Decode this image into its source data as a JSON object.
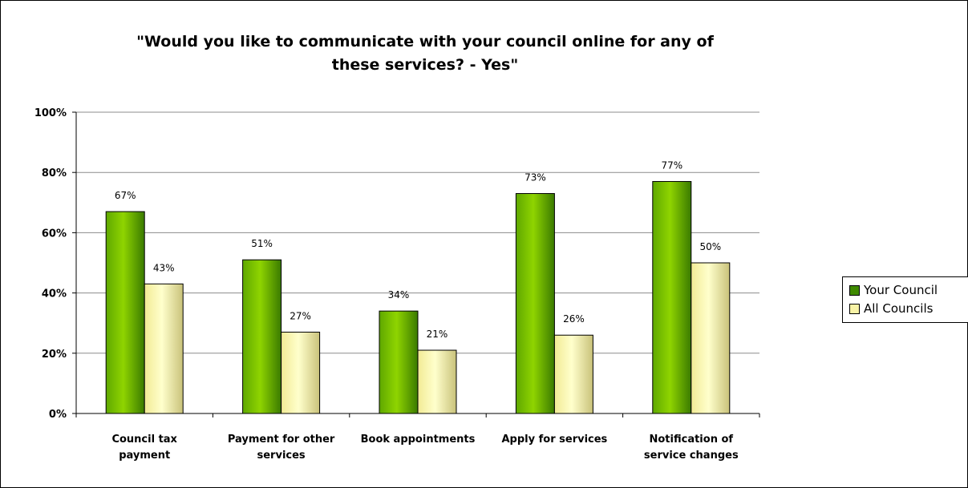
{
  "chart_data": {
    "type": "bar",
    "title": "\"Would you like to communicate with your council online for any of these services? - Yes\"",
    "categories": [
      [
        "Council tax",
        "payment"
      ],
      [
        "Payment for other",
        "services"
      ],
      [
        "Book appointments"
      ],
      [
        "Apply for services"
      ],
      [
        "Notification of",
        "service changes"
      ]
    ],
    "series": [
      {
        "name": "Your Council",
        "values": [
          67,
          51,
          34,
          73,
          77
        ],
        "labels": [
          "67%",
          "51%",
          "34%",
          "73%",
          "77%"
        ],
        "color": "#3f8a00"
      },
      {
        "name": "All Councils",
        "values": [
          43,
          27,
          21,
          26,
          50
        ],
        "labels": [
          "43%",
          "27%",
          "21%",
          "26%",
          "50%"
        ],
        "color": "#f8f3a6"
      }
    ],
    "y_ticks": [
      "0%",
      "20%",
      "40%",
      "60%",
      "80%",
      "100%"
    ],
    "ylim": [
      0,
      100
    ],
    "grid": true,
    "legend": "right"
  }
}
